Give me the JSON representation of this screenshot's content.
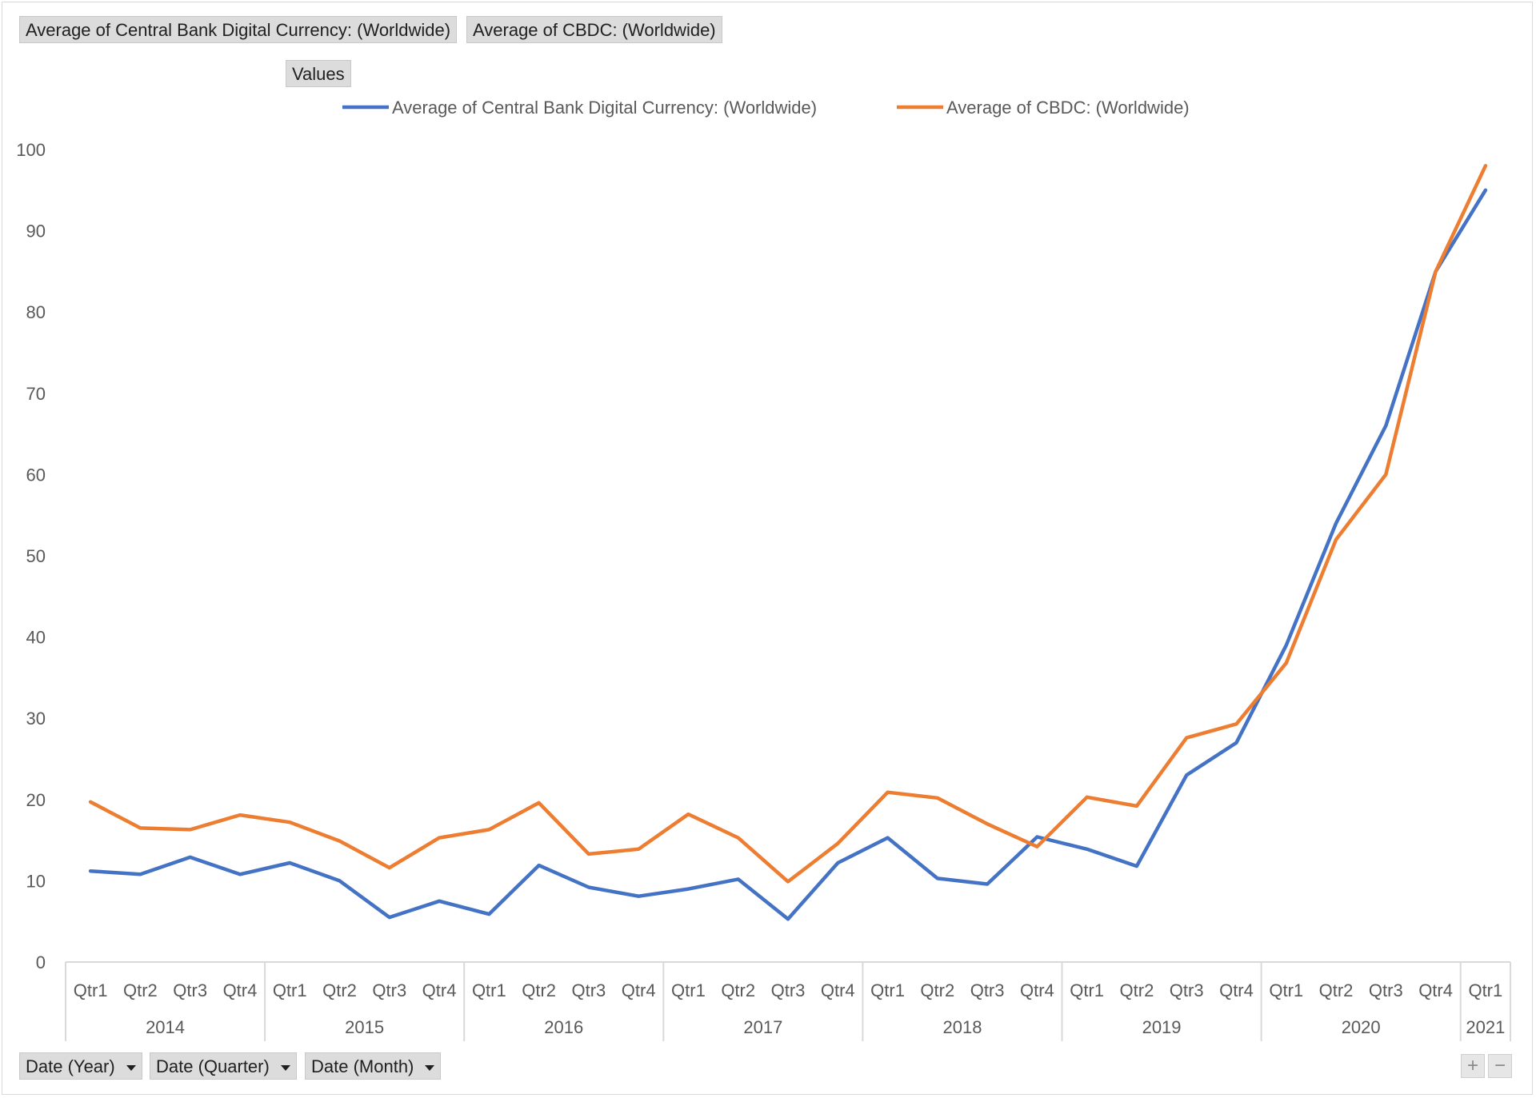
{
  "value_fields": [
    "Average of Central Bank Digital Currency: (Worldwide)",
    "Average of CBDC: (Worldwide)"
  ],
  "values_button": "Values",
  "axis_fields": [
    "Date (Year)",
    "Date (Quarter)",
    "Date (Month)"
  ],
  "zoom": {
    "plus": "+",
    "minus": "−"
  },
  "colors": {
    "series1": "#4472C4",
    "series2": "#ED7D31",
    "axis": "#d9d9d9"
  },
  "chart_data": {
    "type": "line",
    "ylim": [
      0,
      100
    ],
    "yticks": [
      0,
      10,
      20,
      30,
      40,
      50,
      60,
      70,
      80,
      90,
      100
    ],
    "grid": false,
    "legend_position": "top",
    "years": [
      {
        "label": "2014",
        "quarters": [
          "Qtr1",
          "Qtr2",
          "Qtr3",
          "Qtr4"
        ]
      },
      {
        "label": "2015",
        "quarters": [
          "Qtr1",
          "Qtr2",
          "Qtr3",
          "Qtr4"
        ]
      },
      {
        "label": "2016",
        "quarters": [
          "Qtr1",
          "Qtr2",
          "Qtr3",
          "Qtr4"
        ]
      },
      {
        "label": "2017",
        "quarters": [
          "Qtr1",
          "Qtr2",
          "Qtr3",
          "Qtr4"
        ]
      },
      {
        "label": "2018",
        "quarters": [
          "Qtr1",
          "Qtr2",
          "Qtr3",
          "Qtr4"
        ]
      },
      {
        "label": "2019",
        "quarters": [
          "Qtr1",
          "Qtr2",
          "Qtr3",
          "Qtr4"
        ]
      },
      {
        "label": "2020",
        "quarters": [
          "Qtr1",
          "Qtr2",
          "Qtr3",
          "Qtr4"
        ]
      },
      {
        "label": "2021",
        "quarters": [
          "Qtr1"
        ]
      }
    ],
    "series": [
      {
        "name": "Average of Central Bank Digital Currency: (Worldwide)",
        "color": "#4472C4",
        "values": [
          11.2,
          10.8,
          12.9,
          10.8,
          12.2,
          10.0,
          5.5,
          7.5,
          5.9,
          11.9,
          9.2,
          8.1,
          9.0,
          10.2,
          5.3,
          12.2,
          15.3,
          10.3,
          9.6,
          15.4,
          13.9,
          11.8,
          23.0,
          27.0,
          39.0,
          54.0,
          66.0,
          85.0,
          95.0
        ]
      },
      {
        "name": "Average of CBDC: (Worldwide)",
        "color": "#ED7D31",
        "values": [
          19.7,
          16.5,
          16.3,
          18.1,
          17.2,
          14.9,
          11.6,
          15.3,
          16.3,
          19.6,
          13.3,
          13.9,
          18.2,
          15.3,
          9.9,
          14.6,
          20.9,
          20.2,
          17.0,
          14.2,
          20.3,
          19.2,
          27.6,
          29.3,
          36.8,
          52.0,
          60.0,
          85.0,
          98.0
        ]
      }
    ]
  }
}
